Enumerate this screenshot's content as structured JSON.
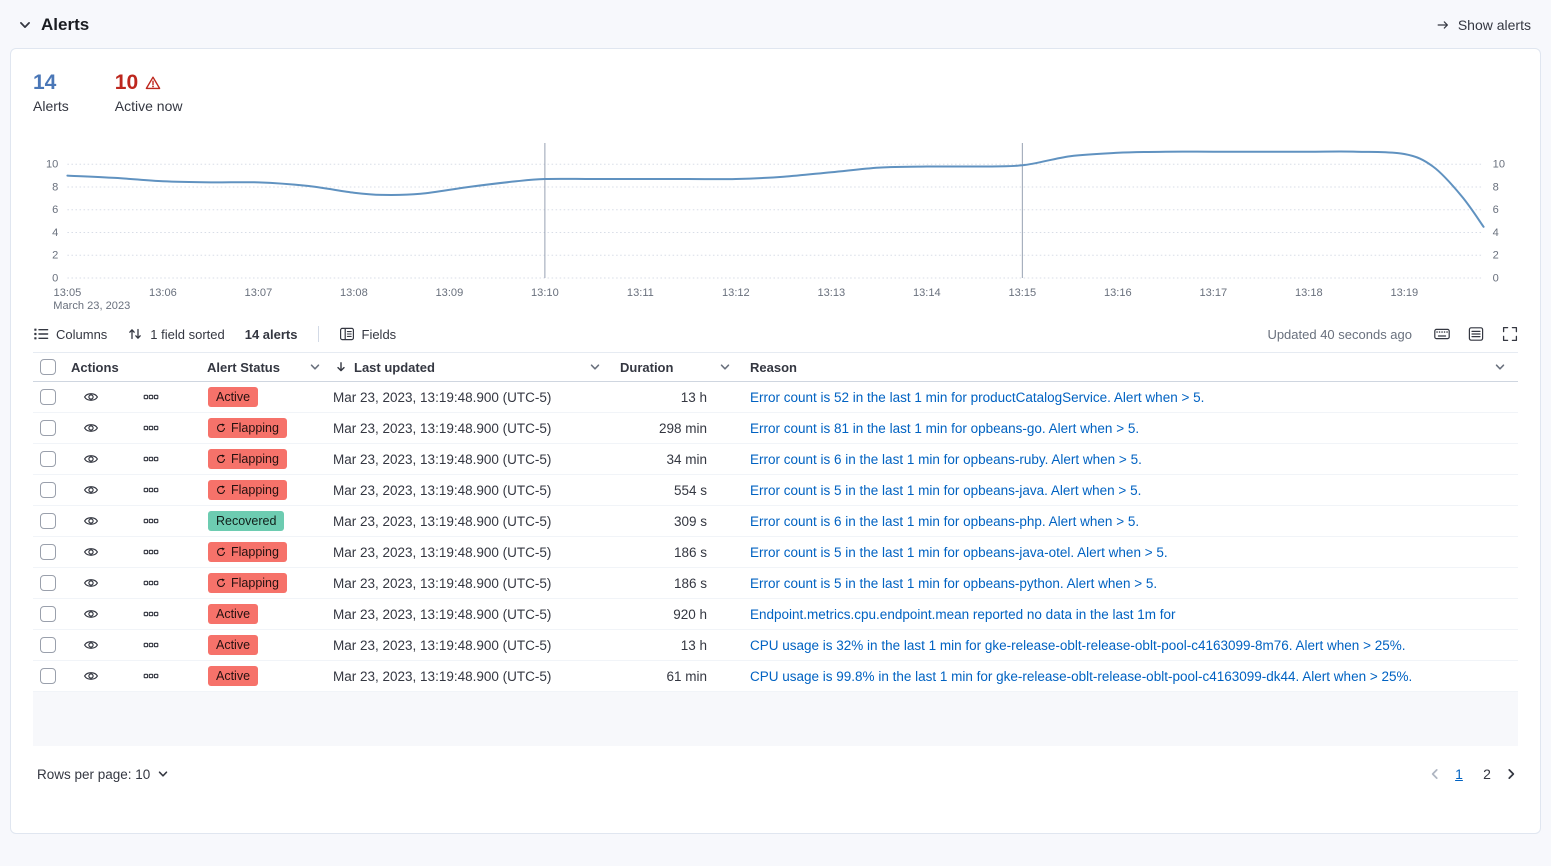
{
  "colors": {
    "accent_blue": "#4A77B7",
    "danger_red": "#BD271E",
    "link_blue": "#0062C2",
    "badge_active_bg": "#F6726A",
    "badge_recovered_bg": "#6DCCB1"
  },
  "header": {
    "title": "Alerts",
    "show_alerts": "Show alerts"
  },
  "stats": {
    "alerts": {
      "value": "14",
      "label": "Alerts"
    },
    "active": {
      "value": "10",
      "label": "Active now"
    }
  },
  "chart_data": {
    "type": "line",
    "title": "",
    "xlabel": "",
    "ylabel": "",
    "x_ticks": [
      "13:05",
      "13:06",
      "13:07",
      "13:08",
      "13:09",
      "13:10",
      "13:11",
      "13:12",
      "13:13",
      "13:14",
      "13:15",
      "13:16",
      "13:17",
      "13:18",
      "13:19"
    ],
    "x_sub_label": "March 23, 2023",
    "y_ticks": [
      0,
      2,
      4,
      6,
      8,
      10
    ],
    "ylim": [
      0,
      11.6
    ],
    "x_minutes_range": [
      0,
      14.83
    ],
    "annotation_lines_min": [
      5,
      10
    ],
    "grid": true,
    "line_color": "#6092C0",
    "points": [
      [
        0,
        9.0
      ],
      [
        0.5,
        8.8
      ],
      [
        1,
        8.5
      ],
      [
        1.5,
        8.4
      ],
      [
        2,
        8.4
      ],
      [
        2.5,
        8.1
      ],
      [
        3,
        7.5
      ],
      [
        3.3,
        7.3
      ],
      [
        3.7,
        7.4
      ],
      [
        4.2,
        8.0
      ],
      [
        4.7,
        8.5
      ],
      [
        5,
        8.7
      ],
      [
        5.5,
        8.7
      ],
      [
        6,
        8.7
      ],
      [
        6.5,
        8.7
      ],
      [
        7,
        8.7
      ],
      [
        7.5,
        8.9
      ],
      [
        8,
        9.3
      ],
      [
        8.5,
        9.7
      ],
      [
        9,
        9.8
      ],
      [
        9.5,
        9.8
      ],
      [
        10,
        9.9
      ],
      [
        10.5,
        10.7
      ],
      [
        11,
        11.0
      ],
      [
        11.5,
        11.1
      ],
      [
        12,
        11.1
      ],
      [
        12.5,
        11.1
      ],
      [
        13,
        11.1
      ],
      [
        13.5,
        11.1
      ],
      [
        14,
        10.9
      ],
      [
        14.3,
        9.8
      ],
      [
        14.6,
        7.2
      ],
      [
        14.83,
        4.5
      ]
    ]
  },
  "toolbar": {
    "columns": "Columns",
    "sorted": "1 field sorted",
    "alert_count": "14 alerts",
    "fields": "Fields",
    "updated": "Updated 40 seconds ago"
  },
  "table": {
    "headers": {
      "actions": "Actions",
      "status": "Alert Status",
      "updated": "Last updated",
      "duration": "Duration",
      "reason": "Reason"
    },
    "rows": [
      {
        "status": "Active",
        "updated": "Mar 23, 2023, 13:19:48.900 (UTC-5)",
        "duration": "13 h",
        "reason": "Error count is 52 in the last 1 min for productCatalogService. Alert when > 5."
      },
      {
        "status": "Flapping",
        "updated": "Mar 23, 2023, 13:19:48.900 (UTC-5)",
        "duration": "298 min",
        "reason": "Error count is 81 in the last 1 min for opbeans-go. Alert when > 5."
      },
      {
        "status": "Flapping",
        "updated": "Mar 23, 2023, 13:19:48.900 (UTC-5)",
        "duration": "34 min",
        "reason": "Error count is 6 in the last 1 min for opbeans-ruby. Alert when > 5."
      },
      {
        "status": "Flapping",
        "updated": "Mar 23, 2023, 13:19:48.900 (UTC-5)",
        "duration": "554 s",
        "reason": "Error count is 5 in the last 1 min for opbeans-java. Alert when > 5."
      },
      {
        "status": "Recovered",
        "updated": "Mar 23, 2023, 13:19:48.900 (UTC-5)",
        "duration": "309 s",
        "reason": "Error count is 6 in the last 1 min for opbeans-php. Alert when > 5."
      },
      {
        "status": "Flapping",
        "updated": "Mar 23, 2023, 13:19:48.900 (UTC-5)",
        "duration": "186 s",
        "reason": "Error count is 5 in the last 1 min for opbeans-java-otel. Alert when > 5."
      },
      {
        "status": "Flapping",
        "updated": "Mar 23, 2023, 13:19:48.900 (UTC-5)",
        "duration": "186 s",
        "reason": "Error count is 5 in the last 1 min for opbeans-python. Alert when > 5."
      },
      {
        "status": "Active",
        "updated": "Mar 23, 2023, 13:19:48.900 (UTC-5)",
        "duration": "920 h",
        "reason": "Endpoint.metrics.cpu.endpoint.mean reported no data in the last 1m for"
      },
      {
        "status": "Active",
        "updated": "Mar 23, 2023, 13:19:48.900 (UTC-5)",
        "duration": "13 h",
        "reason": "CPU usage is 32% in the last 1 min for gke-release-oblt-release-oblt-pool-c4163099-8m76. Alert when > 25%."
      },
      {
        "status": "Active",
        "updated": "Mar 23, 2023, 13:19:48.900 (UTC-5)",
        "duration": "61 min",
        "reason": "CPU usage is 99.8% in the last 1 min for gke-release-oblt-release-oblt-pool-c4163099-dk44. Alert when > 25%."
      }
    ]
  },
  "footer": {
    "rows_per_page": "Rows per page: 10",
    "pages": [
      "1",
      "2"
    ],
    "current_page": "1"
  }
}
